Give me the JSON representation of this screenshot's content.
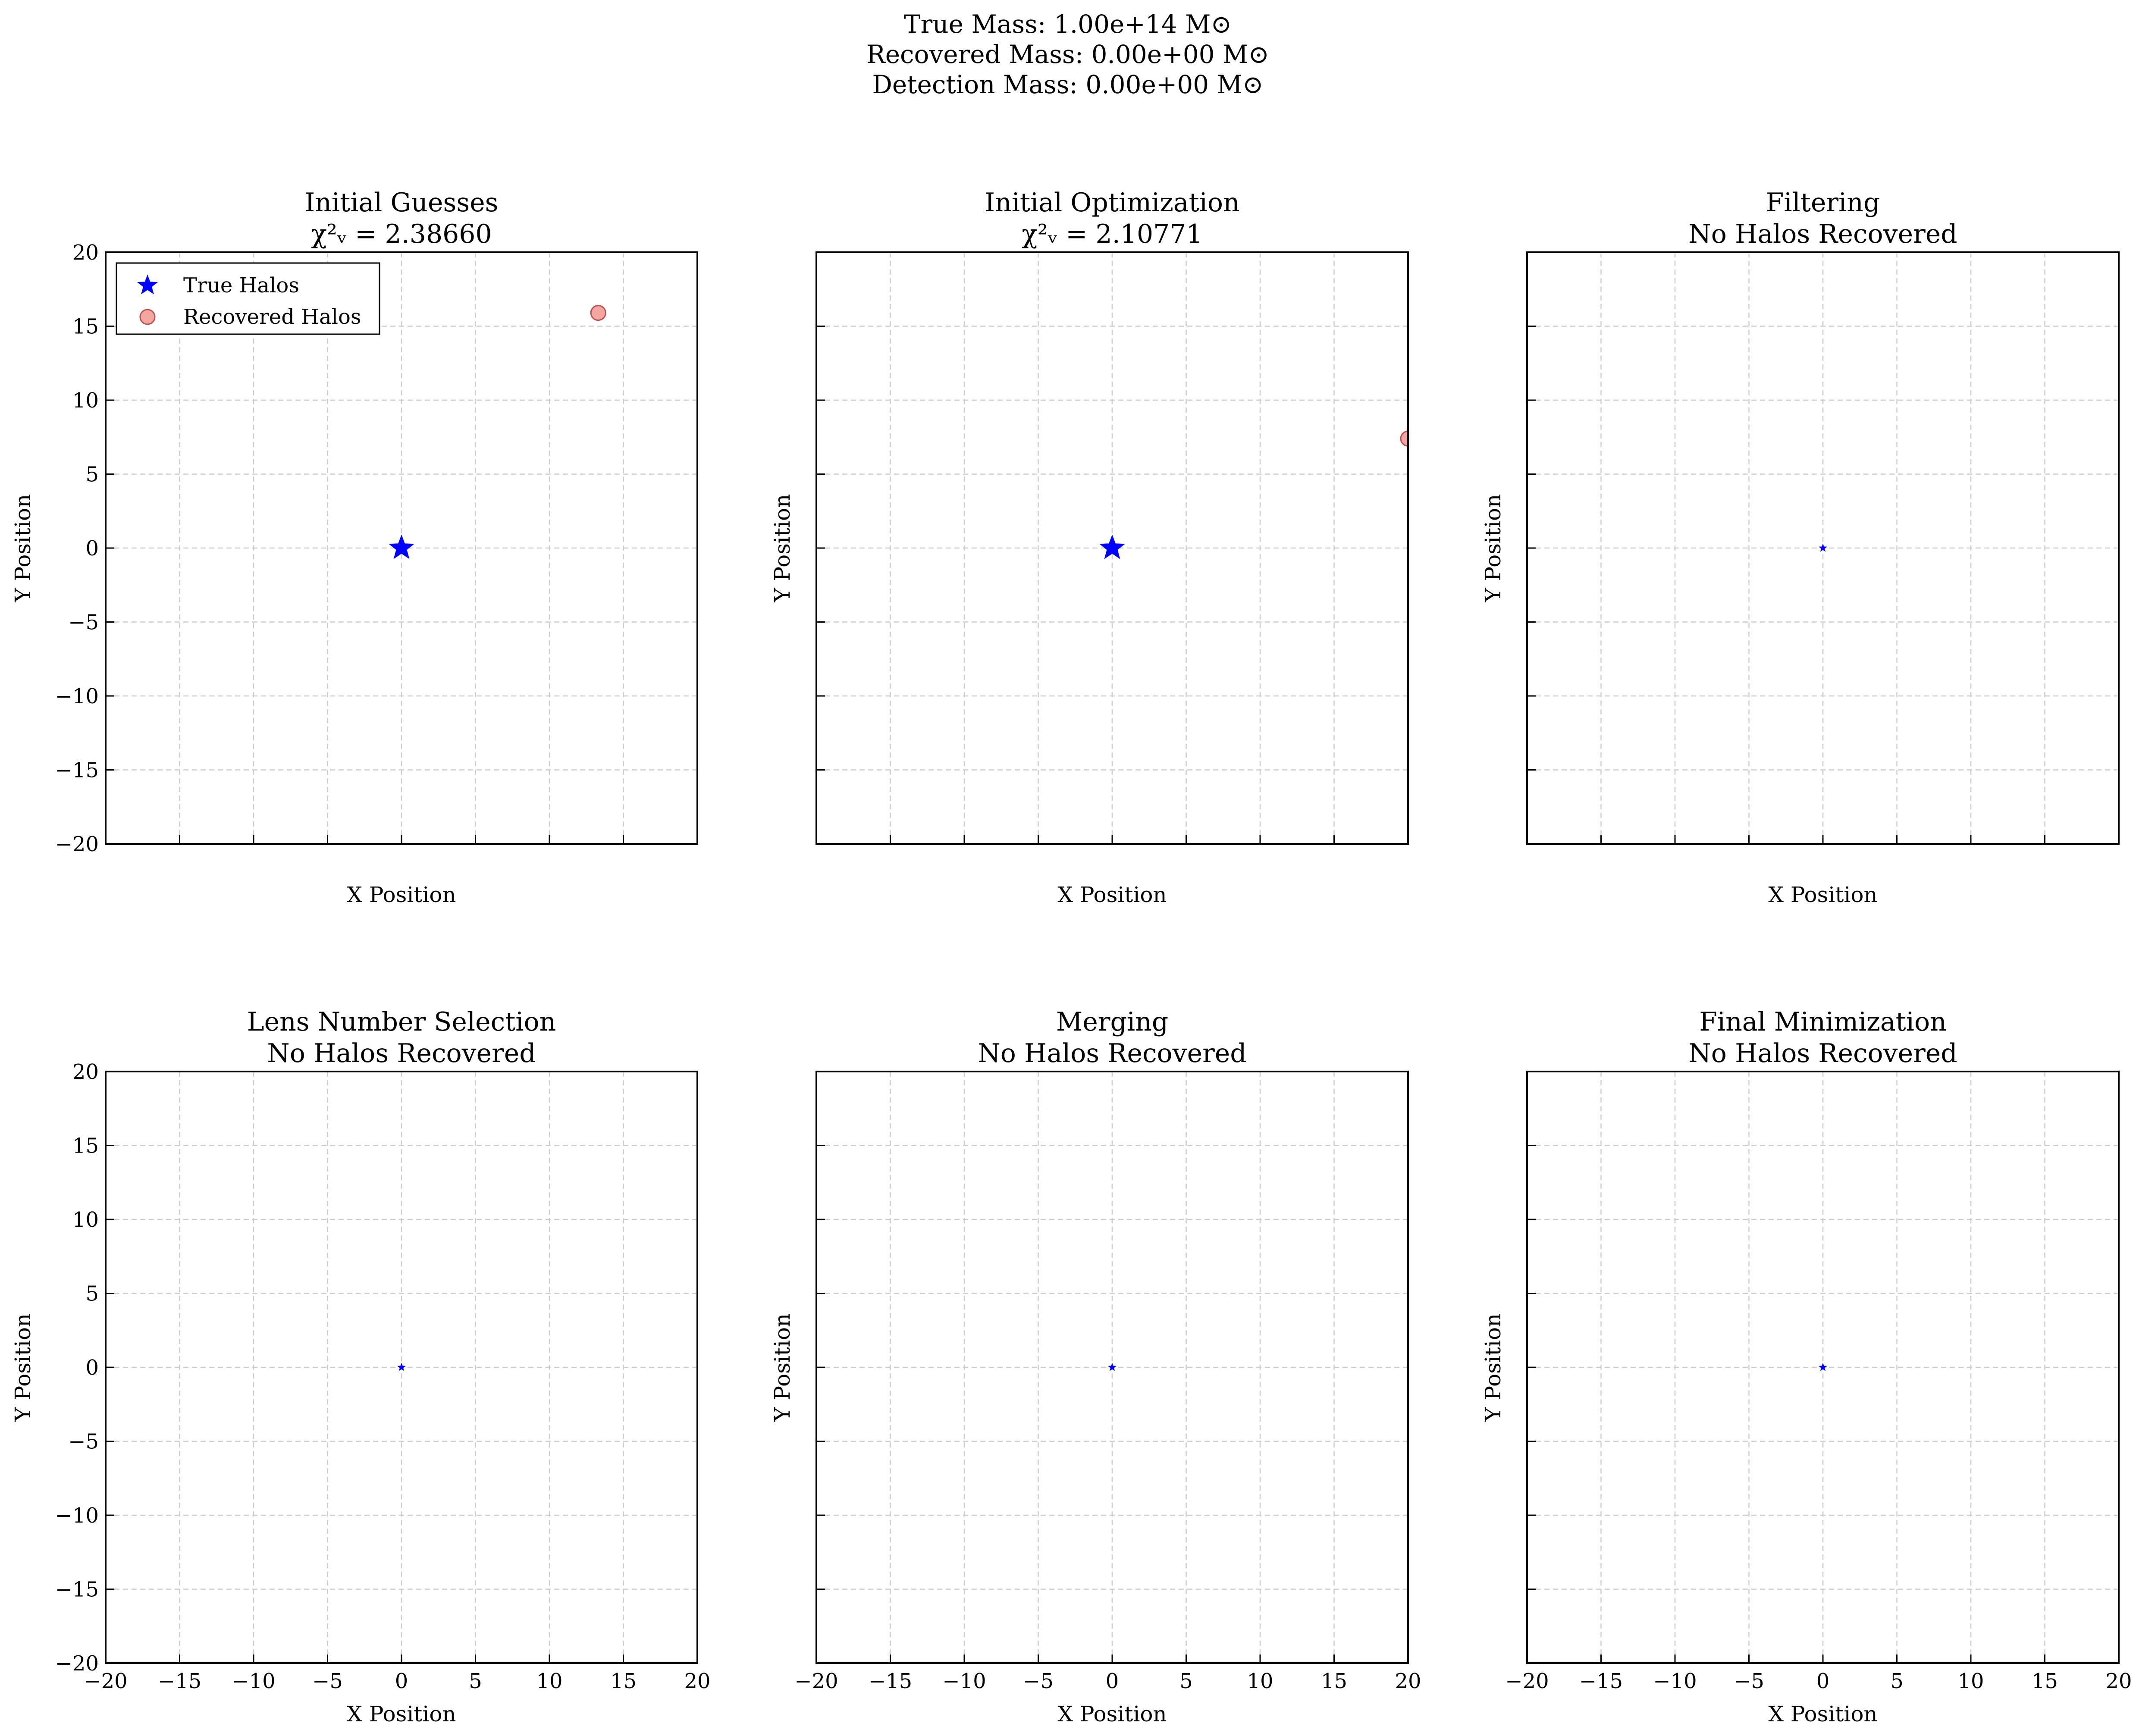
{
  "figure": {
    "suptitle_lines": [
      "True Mass: 1.00e+14 M⊙",
      "Recovered Mass: 0.00e+00 M⊙",
      "Detection Mass: 0.00e+00 M⊙"
    ]
  },
  "colors": {
    "true_halo": "#0000ff",
    "recovered_halo_fill": "#f4a6a0",
    "recovered_halo_edge": "#c0504d",
    "grid": "#cccccc"
  },
  "legend": {
    "placement": "upper-left",
    "entries": [
      "True Halos",
      "Recovered Halos"
    ]
  },
  "chart_data": [
    {
      "type": "scatter",
      "title": "Initial Guesses",
      "subtitle": "χ²ᵥ = 2.38660",
      "xlabel": "X Position",
      "ylabel": "Y Position",
      "xlim": [
        -20,
        20
      ],
      "ylim": [
        -20,
        20
      ],
      "grid": true,
      "show_x_ticklabels": false,
      "show_y_ticklabels": true,
      "show_legend": true,
      "true_halos": [
        {
          "x": 0,
          "y": 0,
          "marker_size": "large"
        }
      ],
      "recovered_halos": [
        {
          "x": 13.3,
          "y": 15.9
        }
      ]
    },
    {
      "type": "scatter",
      "title": "Initial Optimization",
      "subtitle": "χ²ᵥ = 2.10771",
      "xlabel": "X Position",
      "ylabel": "Y Position",
      "xlim": [
        -20,
        20
      ],
      "ylim": [
        -20,
        20
      ],
      "grid": true,
      "show_x_ticklabels": false,
      "show_y_ticklabels": false,
      "show_legend": false,
      "true_halos": [
        {
          "x": 0,
          "y": 0,
          "marker_size": "large"
        }
      ],
      "recovered_halos": [
        {
          "x": 20.0,
          "y": 7.4
        }
      ]
    },
    {
      "type": "scatter",
      "title": "Filtering",
      "subtitle": "No Halos Recovered",
      "xlabel": "X Position",
      "ylabel": "Y Position",
      "xlim": [
        -20,
        20
      ],
      "ylim": [
        -20,
        20
      ],
      "grid": true,
      "show_x_ticklabels": false,
      "show_y_ticklabels": false,
      "show_legend": false,
      "true_halos": [
        {
          "x": 0,
          "y": 0,
          "marker_size": "small"
        }
      ],
      "recovered_halos": []
    },
    {
      "type": "scatter",
      "title": "Lens Number Selection",
      "subtitle": "No Halos Recovered",
      "xlabel": "X Position",
      "ylabel": "Y Position",
      "xlim": [
        -20,
        20
      ],
      "ylim": [
        -20,
        20
      ],
      "grid": true,
      "show_x_ticklabels": true,
      "show_y_ticklabels": true,
      "show_legend": false,
      "true_halos": [
        {
          "x": 0,
          "y": 0,
          "marker_size": "small"
        }
      ],
      "recovered_halos": []
    },
    {
      "type": "scatter",
      "title": "Merging",
      "subtitle": "No Halos Recovered",
      "xlabel": "X Position",
      "ylabel": "Y Position",
      "xlim": [
        -20,
        20
      ],
      "ylim": [
        -20,
        20
      ],
      "grid": true,
      "show_x_ticklabels": true,
      "show_y_ticklabels": false,
      "show_legend": false,
      "true_halos": [
        {
          "x": 0,
          "y": 0,
          "marker_size": "small"
        }
      ],
      "recovered_halos": []
    },
    {
      "type": "scatter",
      "title": "Final Minimization",
      "subtitle": "No Halos Recovered",
      "xlabel": "X Position",
      "ylabel": "Y Position",
      "xlim": [
        -20,
        20
      ],
      "ylim": [
        -20,
        20
      ],
      "grid": true,
      "show_x_ticklabels": true,
      "show_y_ticklabels": false,
      "show_legend": false,
      "true_halos": [
        {
          "x": 0,
          "y": 0,
          "marker_size": "small"
        }
      ],
      "recovered_halos": []
    }
  ]
}
